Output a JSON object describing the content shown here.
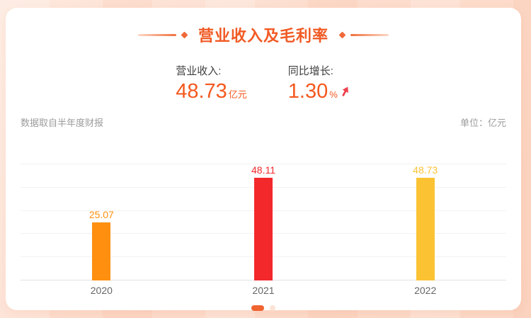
{
  "header": {
    "title": "营业收入及毛利率"
  },
  "stats": [
    {
      "label": "营业收入:",
      "value": "48.73",
      "unit": "亿元"
    },
    {
      "label": "同比增长:",
      "value": "1.30",
      "unit": "%",
      "trend_icon": "arrow-up-red"
    }
  ],
  "meta": {
    "source_note": "数据取自半年度财报",
    "unit_note": "单位：亿元"
  },
  "chart_data": {
    "type": "bar",
    "categories": [
      "2020",
      "2021",
      "2022"
    ],
    "values": [
      25.07,
      48.11,
      48.73
    ],
    "value_labels": [
      "25.07",
      "48.11",
      "48.73"
    ],
    "bar_colors": [
      "#FF8F0F",
      "#F3282B",
      "#FBC334"
    ],
    "title": "营业收入及毛利率",
    "xlabel": "",
    "ylabel": "亿元",
    "ylim": [
      0,
      50
    ],
    "grid_step": 10,
    "grid": "on",
    "legend": "none"
  },
  "pagination": {
    "dots_count": 2,
    "active_index": 0
  },
  "colors": {
    "accent_orange": "#F15A24",
    "value_orange": "#F4581F",
    "arrow_red": "#EE404D",
    "active_dot": "#EF6430",
    "inactive_dot": "#FBE3D6",
    "card_bg": "#FFFFFF",
    "page_bg": "#FCDCCC",
    "gridline": "#F2F2F2",
    "axis_label": "#666666",
    "meta_text": "#9B9B9B"
  }
}
